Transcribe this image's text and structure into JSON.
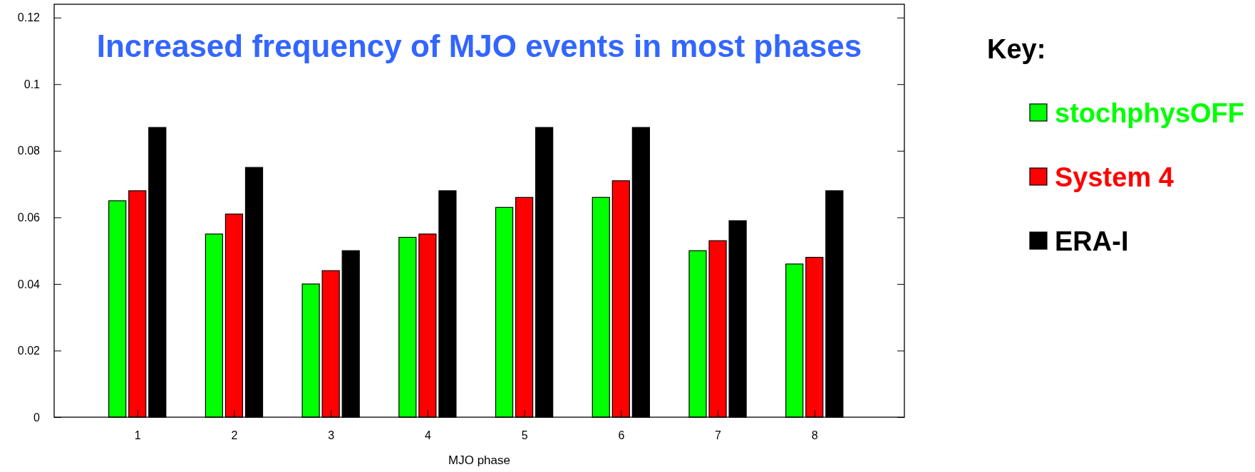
{
  "chart_data": {
    "type": "bar",
    "title": "Increased frequency of MJO events in most phases",
    "xlabel": "MJO phase",
    "legend_title": "Key:",
    "categories": [
      "1",
      "2",
      "3",
      "4",
      "5",
      "6",
      "7",
      "8"
    ],
    "series": [
      {
        "name": "stochphysOFF",
        "color": "#00ff00",
        "values": [
          0.065,
          0.055,
          0.04,
          0.054,
          0.063,
          0.066,
          0.05,
          0.046
        ]
      },
      {
        "name": "System 4",
        "color": "#ff0000",
        "values": [
          0.068,
          0.061,
          0.044,
          0.055,
          0.066,
          0.071,
          0.053,
          0.048
        ]
      },
      {
        "name": "ERA-I",
        "color": "#000000",
        "values": [
          0.087,
          0.075,
          0.05,
          0.068,
          0.087,
          0.087,
          0.059,
          0.068
        ]
      }
    ],
    "ylim": [
      0,
      0.124
    ],
    "yticks": [
      0,
      0.02,
      0.04,
      0.06,
      0.08,
      0.1,
      0.12
    ],
    "grid": false,
    "legend": "right"
  }
}
